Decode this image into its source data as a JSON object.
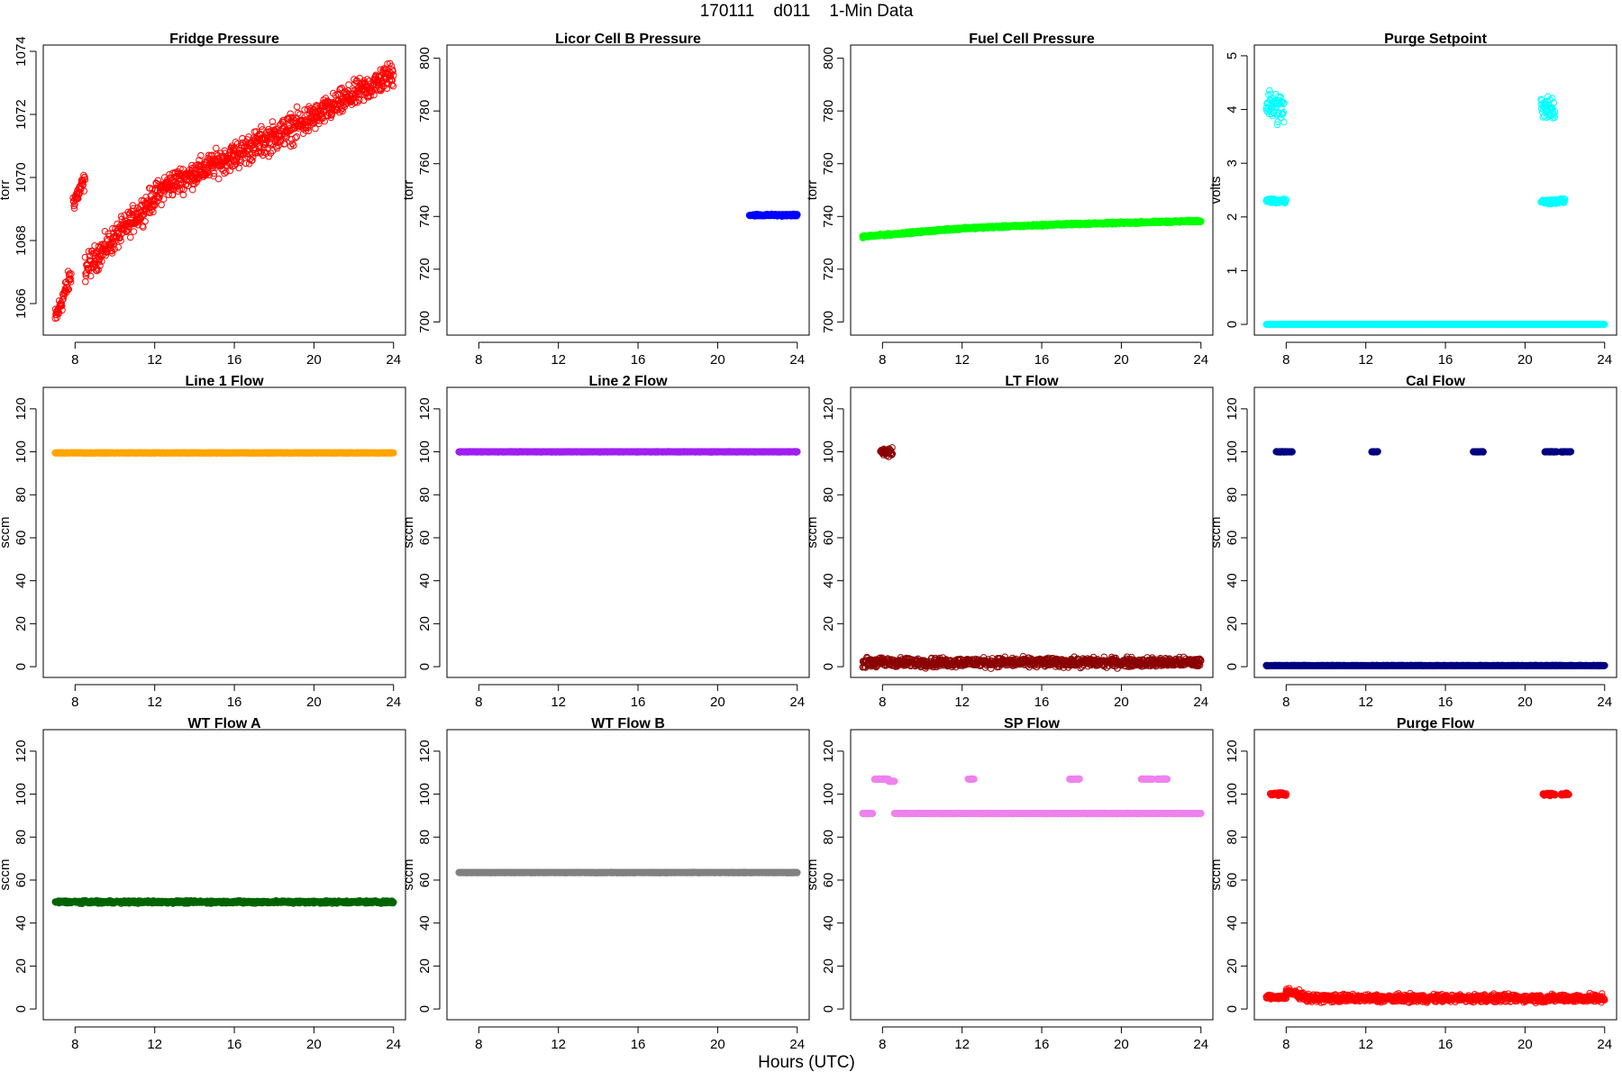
{
  "page_title": "170111    d011    1-Min Data",
  "x_axis_label": "Hours (UTC)",
  "chart_data": [
    {
      "type": "scatter",
      "title": "Fridge Pressure",
      "ylabel": "torr",
      "xlim": [
        6.4,
        24.6
      ],
      "ylim": [
        1065.0,
        1074.2
      ],
      "xticks": [
        8,
        12,
        16,
        20,
        24
      ],
      "yticks": [
        1066,
        1068,
        1070,
        1072,
        1074
      ],
      "color": "#ff0000",
      "marker": "open",
      "segments": [
        {
          "x": [
            7.0,
            7.8
          ],
          "y": [
            1065.5,
            1066.9
          ],
          "noise": 0.3
        },
        {
          "x": [
            7.9,
            8.5
          ],
          "y": [
            1069.2,
            1069.9
          ],
          "noise": 0.25
        },
        {
          "x": [
            8.5,
            12.5
          ],
          "y": [
            1067.1,
            1069.7
          ],
          "noise": 0.35
        },
        {
          "x": [
            12.5,
            16.0
          ],
          "y": [
            1069.7,
            1070.7
          ],
          "noise": 0.35
        },
        {
          "x": [
            16.0,
            20.0
          ],
          "y": [
            1070.7,
            1071.9
          ],
          "noise": 0.4
        },
        {
          "x": [
            20.0,
            24.0
          ],
          "y": [
            1071.9,
            1073.3
          ],
          "noise": 0.35
        }
      ]
    },
    {
      "type": "scatter",
      "title": "Licor Cell B Pressure",
      "ylabel": "torr",
      "xlim": [
        6.4,
        24.6
      ],
      "ylim": [
        695,
        805
      ],
      "xticks": [
        8,
        12,
        16,
        20,
        24
      ],
      "yticks": [
        700,
        720,
        740,
        760,
        780,
        800
      ],
      "color": "#0000ff",
      "marker": "filled",
      "segments": [
        {
          "x": [
            21.6,
            24.0
          ],
          "y": [
            740.5,
            740.5
          ],
          "noise": 0.3
        }
      ]
    },
    {
      "type": "scatter",
      "title": "Fuel Cell Pressure",
      "ylabel": "torr",
      "xlim": [
        6.4,
        24.6
      ],
      "ylim": [
        695,
        805
      ],
      "xticks": [
        8,
        12,
        16,
        20,
        24
      ],
      "yticks": [
        700,
        720,
        740,
        760,
        780,
        800
      ],
      "color": "#00ff00",
      "marker": "filled",
      "segments": [
        {
          "x": [
            7.0,
            12.0
          ],
          "y": [
            732.3,
            735.5
          ],
          "noise": 0.3
        },
        {
          "x": [
            12.0,
            17.0
          ],
          "y": [
            735.5,
            737.0
          ],
          "noise": 0.3
        },
        {
          "x": [
            17.0,
            24.0
          ],
          "y": [
            737.0,
            738.3
          ],
          "noise": 0.3
        }
      ]
    },
    {
      "type": "scatter",
      "title": "Purge Setpoint",
      "ylabel": "volts",
      "xlim": [
        6.4,
        24.6
      ],
      "ylim": [
        -0.2,
        5.2
      ],
      "xticks": [
        8,
        12,
        16,
        20,
        24
      ],
      "yticks": [
        0,
        1,
        2,
        3,
        4,
        5
      ],
      "color": "#00ffff",
      "marker": "open",
      "segments": [
        {
          "x": [
            7.0,
            24.0
          ],
          "y": [
            0.0,
            0.0
          ],
          "noise": 0.0
        },
        {
          "x": [
            7.0,
            7.9
          ],
          "y": [
            4.1,
            4.0
          ],
          "noise": 0.25
        },
        {
          "x": [
            7.0,
            8.0
          ],
          "y": [
            2.3,
            2.3
          ],
          "noise": 0.04
        },
        {
          "x": [
            20.8,
            21.5
          ],
          "y": [
            4.1,
            4.0
          ],
          "noise": 0.2
        },
        {
          "x": [
            20.8,
            22.0
          ],
          "y": [
            2.28,
            2.3
          ],
          "noise": 0.04
        }
      ]
    },
    {
      "type": "scatter",
      "title": "Line 1 Flow",
      "ylabel": "sccm",
      "xlim": [
        6.4,
        24.6
      ],
      "ylim": [
        -5,
        130
      ],
      "xticks": [
        8,
        12,
        16,
        20,
        24
      ],
      "yticks": [
        0,
        20,
        40,
        60,
        80,
        100,
        120
      ],
      "color": "#ffa500",
      "marker": "filled",
      "segments": [
        {
          "x": [
            7.0,
            24.0
          ],
          "y": [
            99.5,
            99.5
          ],
          "noise": 0.1
        }
      ]
    },
    {
      "type": "scatter",
      "title": "Line 2 Flow",
      "ylabel": "sccm",
      "xlim": [
        6.4,
        24.6
      ],
      "ylim": [
        -5,
        130
      ],
      "xticks": [
        8,
        12,
        16,
        20,
        24
      ],
      "yticks": [
        0,
        20,
        40,
        60,
        80,
        100,
        120
      ],
      "color": "#a020f0",
      "marker": "filled",
      "segments": [
        {
          "x": [
            7.0,
            24.0
          ],
          "y": [
            100.0,
            100.0
          ],
          "noise": 0.1
        }
      ]
    },
    {
      "type": "scatter",
      "title": "LT Flow",
      "ylabel": "sccm",
      "xlim": [
        6.4,
        24.6
      ],
      "ylim": [
        -5,
        130
      ],
      "xticks": [
        8,
        12,
        16,
        20,
        24
      ],
      "yticks": [
        0,
        20,
        40,
        60,
        80,
        100,
        120
      ],
      "color": "#8b0000",
      "marker": "open",
      "segments": [
        {
          "x": [
            7.0,
            24.0
          ],
          "y": [
            2.0,
            2.0
          ],
          "noise": 1.8
        },
        {
          "x": [
            7.9,
            8.5
          ],
          "y": [
            100.0,
            100.0
          ],
          "noise": 1.5
        }
      ]
    },
    {
      "type": "scatter",
      "title": "Cal Flow",
      "ylabel": "sccm",
      "xlim": [
        6.4,
        24.6
      ],
      "ylim": [
        -5,
        130
      ],
      "xticks": [
        8,
        12,
        16,
        20,
        24
      ],
      "yticks": [
        0,
        20,
        40,
        60,
        80,
        100,
        120
      ],
      "color": "#000080",
      "marker": "filled",
      "segments": [
        {
          "x": [
            7.0,
            24.0
          ],
          "y": [
            0.5,
            0.5
          ],
          "noise": 0.1
        },
        {
          "x": [
            7.5,
            8.3
          ],
          "y": [
            100.0,
            100.0
          ],
          "noise": 0.1
        },
        {
          "x": [
            12.3,
            12.6
          ],
          "y": [
            100.0,
            100.0
          ],
          "noise": 0.1
        },
        {
          "x": [
            17.4,
            17.9
          ],
          "y": [
            100.0,
            100.0
          ],
          "noise": 0.1
        },
        {
          "x": [
            21.0,
            21.6
          ],
          "y": [
            100.0,
            100.0
          ],
          "noise": 0.1
        },
        {
          "x": [
            21.8,
            22.3
          ],
          "y": [
            100.0,
            100.0
          ],
          "noise": 0.1
        }
      ]
    },
    {
      "type": "scatter",
      "title": "WT Flow A",
      "ylabel": "sccm",
      "xlim": [
        6.4,
        24.6
      ],
      "ylim": [
        -5,
        130
      ],
      "xticks": [
        8,
        12,
        16,
        20,
        24
      ],
      "yticks": [
        0,
        20,
        40,
        60,
        80,
        100,
        120
      ],
      "color": "#006400",
      "marker": "open",
      "segments": [
        {
          "x": [
            7.0,
            24.0
          ],
          "y": [
            49.8,
            49.8
          ],
          "noise": 0.5
        }
      ]
    },
    {
      "type": "scatter",
      "title": "WT Flow B",
      "ylabel": "sccm",
      "xlim": [
        6.4,
        24.6
      ],
      "ylim": [
        -5,
        130
      ],
      "xticks": [
        8,
        12,
        16,
        20,
        24
      ],
      "yticks": [
        0,
        20,
        40,
        60,
        80,
        100,
        120
      ],
      "color": "#808080",
      "marker": "filled",
      "segments": [
        {
          "x": [
            7.0,
            24.0
          ],
          "y": [
            63.5,
            63.5
          ],
          "noise": 0.1
        }
      ]
    },
    {
      "type": "scatter",
      "title": "SP Flow",
      "ylabel": "sccm",
      "xlim": [
        6.4,
        24.6
      ],
      "ylim": [
        -5,
        130
      ],
      "xticks": [
        8,
        12,
        16,
        20,
        24
      ],
      "yticks": [
        0,
        20,
        40,
        60,
        80,
        100,
        120
      ],
      "color": "#ee82ee",
      "marker": "filled",
      "segments": [
        {
          "x": [
            7.0,
            7.5
          ],
          "y": [
            91.0,
            91.0
          ],
          "noise": 0.1
        },
        {
          "x": [
            7.6,
            8.3
          ],
          "y": [
            107.0,
            107.0
          ],
          "noise": 0.1
        },
        {
          "x": [
            8.3,
            8.6
          ],
          "y": [
            106.0,
            106.0
          ],
          "noise": 0.1
        },
        {
          "x": [
            8.6,
            24.0
          ],
          "y": [
            91.0,
            91.0
          ],
          "noise": 0.1
        },
        {
          "x": [
            12.3,
            12.6
          ],
          "y": [
            107.0,
            107.0
          ],
          "noise": 0.1
        },
        {
          "x": [
            17.4,
            17.9
          ],
          "y": [
            107.0,
            107.0
          ],
          "noise": 0.1
        },
        {
          "x": [
            21.0,
            21.6
          ],
          "y": [
            107.0,
            107.0
          ],
          "noise": 0.1
        },
        {
          "x": [
            21.8,
            22.3
          ],
          "y": [
            107.0,
            107.0
          ],
          "noise": 0.1
        }
      ]
    },
    {
      "type": "scatter",
      "title": "Purge Flow",
      "ylabel": "sccm",
      "xlim": [
        6.4,
        24.6
      ],
      "ylim": [
        -5,
        130
      ],
      "xticks": [
        8,
        12,
        16,
        20,
        24
      ],
      "yticks": [
        0,
        20,
        40,
        60,
        80,
        100,
        120
      ],
      "color": "#ff0000",
      "marker": "open",
      "segments": [
        {
          "x": [
            7.0,
            8.0
          ],
          "y": [
            5.5,
            5.5
          ],
          "noise": 0.8
        },
        {
          "x": [
            8.0,
            9.0
          ],
          "y": [
            8.0,
            6.0
          ],
          "noise": 1.5
        },
        {
          "x": [
            9.0,
            24.0
          ],
          "y": [
            5.0,
            5.0
          ],
          "noise": 1.5
        },
        {
          "x": [
            7.2,
            8.0
          ],
          "y": [
            100.0,
            100.0
          ],
          "noise": 0.6
        },
        {
          "x": [
            20.9,
            21.5
          ],
          "y": [
            100.0,
            100.0
          ],
          "noise": 0.5
        },
        {
          "x": [
            21.8,
            22.2
          ],
          "y": [
            100.0,
            100.0
          ],
          "noise": 0.5
        }
      ]
    }
  ]
}
